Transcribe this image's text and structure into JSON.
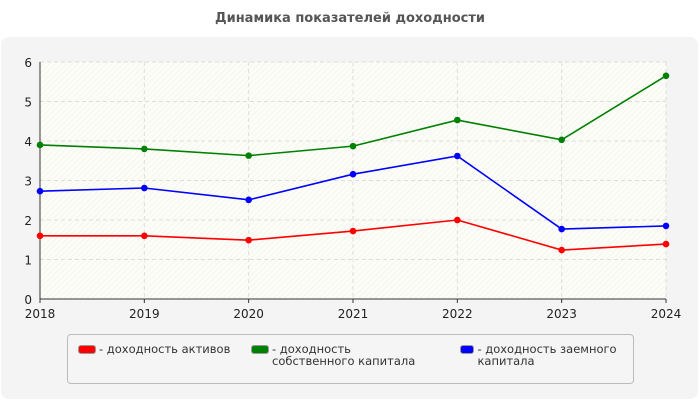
{
  "chart_data": {
    "type": "line",
    "title": "Динамика показателей доходности",
    "xlabel": "",
    "ylabel": "",
    "x": [
      "2018",
      "2019",
      "2020",
      "2021",
      "2022",
      "2023",
      "2024"
    ],
    "ylim": [
      0,
      6
    ],
    "yticks": [
      "0",
      "1",
      "2",
      "3",
      "4",
      "5",
      "6"
    ],
    "grid": true,
    "legend_position": "bottom",
    "series": [
      {
        "name": "- доходность активов",
        "color": "#ff0000",
        "values": [
          1.6,
          1.6,
          1.49,
          1.72,
          2.0,
          1.24,
          1.39
        ]
      },
      {
        "name": "- доходность собственного капитала",
        "color": "#008000",
        "values": [
          3.9,
          3.8,
          3.63,
          3.87,
          4.53,
          4.03,
          5.65
        ]
      },
      {
        "name": "- доходность заемного капитала",
        "color": "#0000ff",
        "values": [
          2.73,
          2.81,
          2.51,
          3.16,
          3.62,
          1.77,
          1.85
        ]
      }
    ]
  }
}
